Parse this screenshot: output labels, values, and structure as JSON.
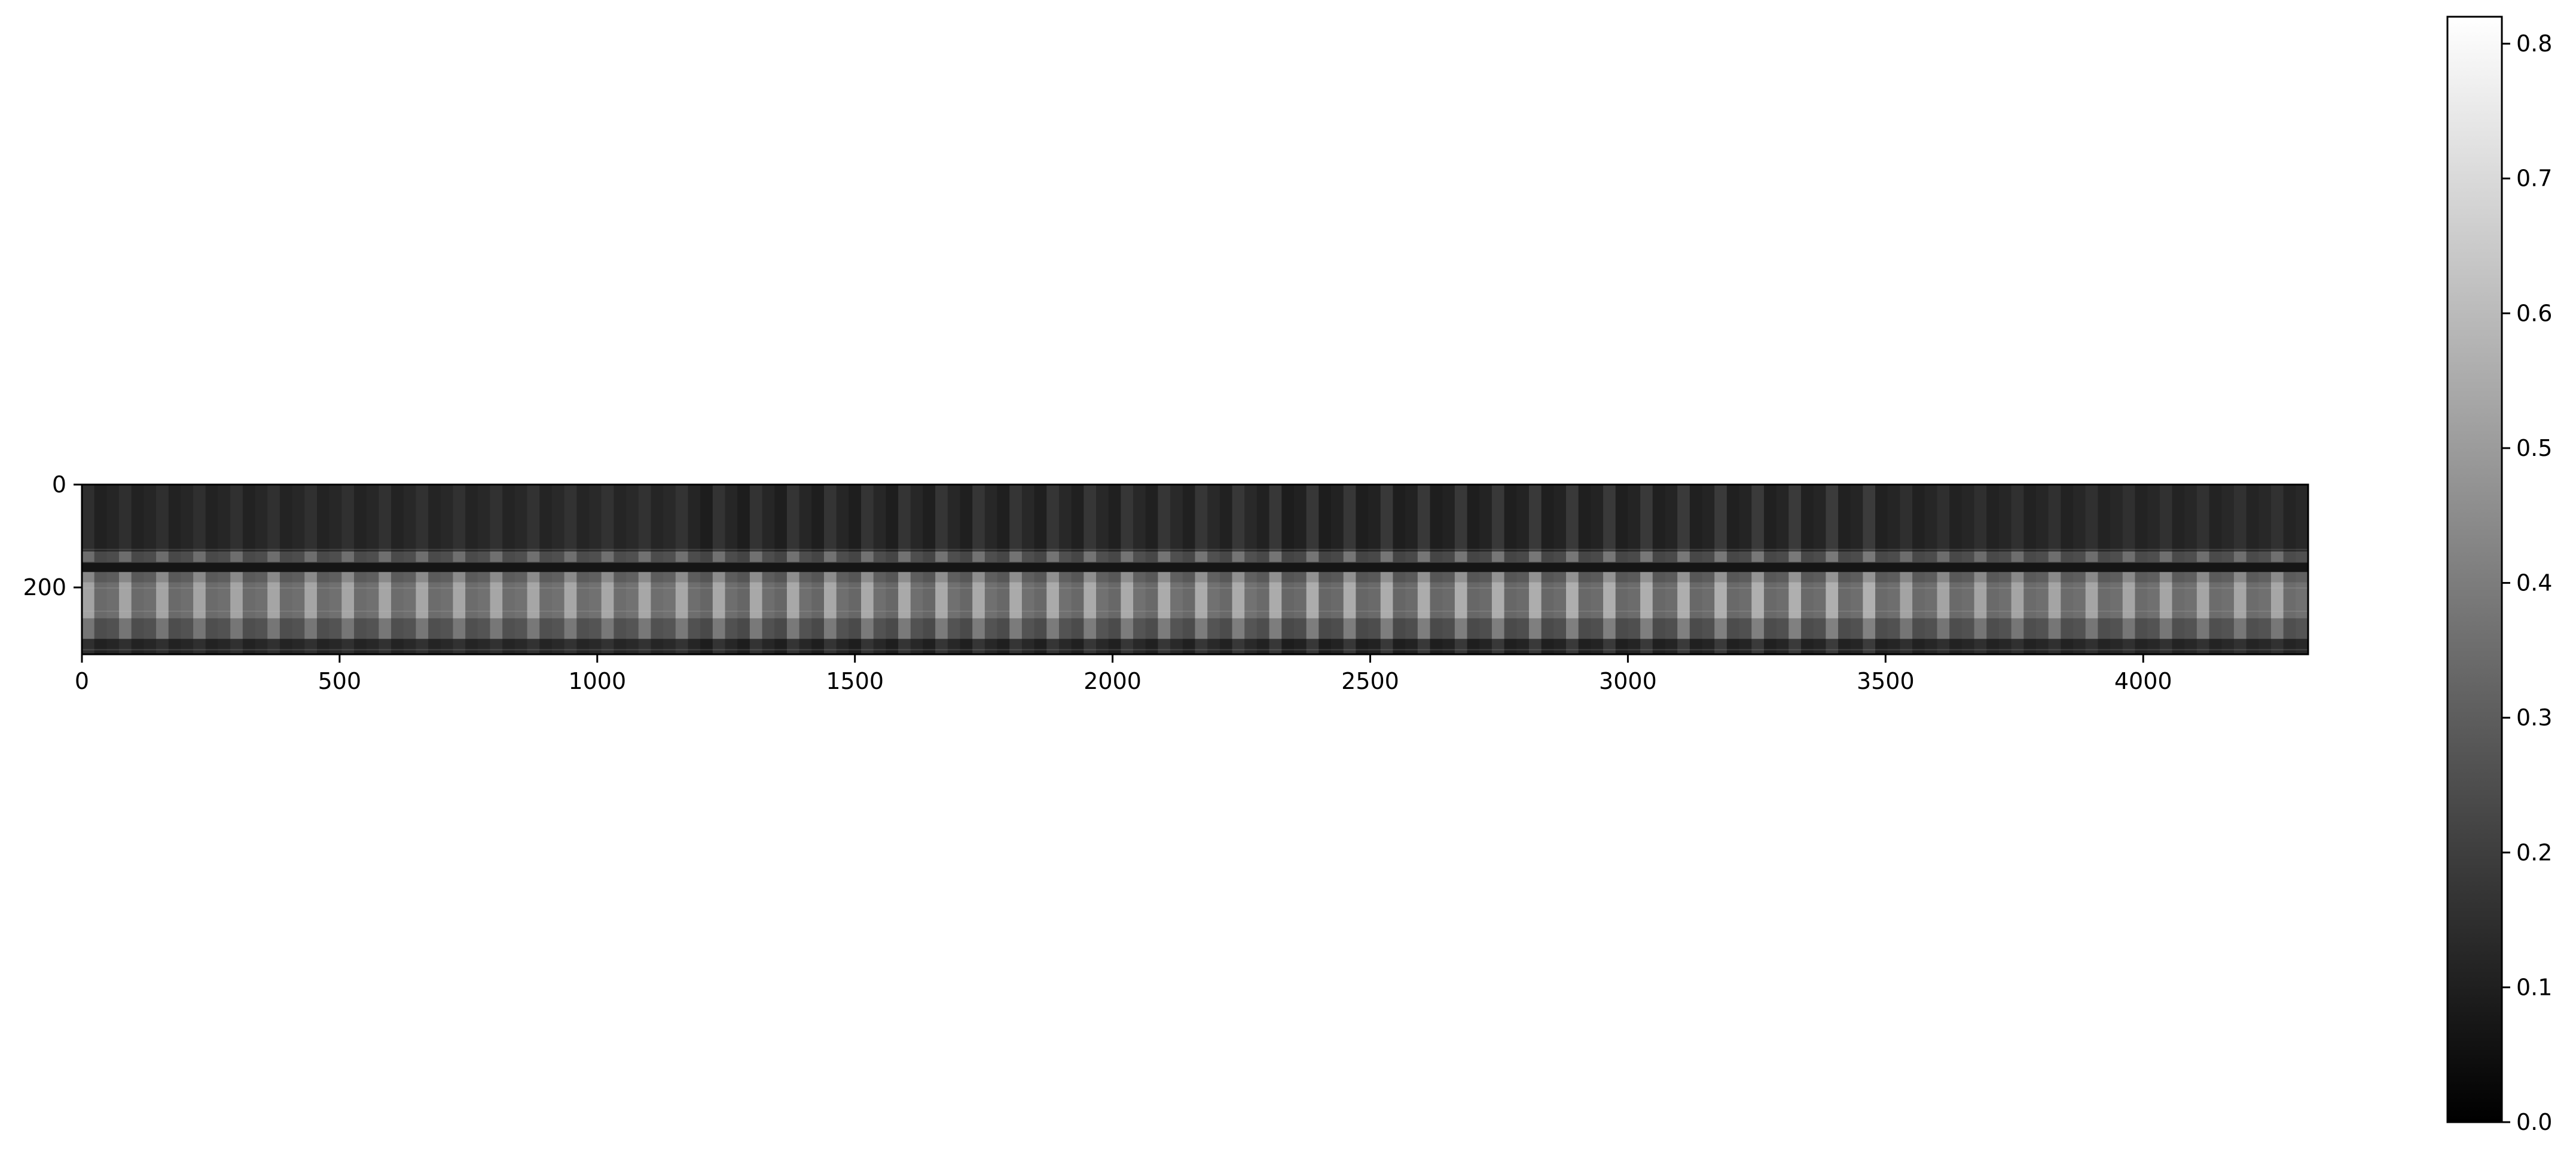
{
  "chart_data": {
    "type": "heatmap",
    "title": "",
    "xlabel": "",
    "ylabel": "",
    "colormap": "gray",
    "shape": [
      330,
      4320
    ],
    "xlim": [
      0,
      4320
    ],
    "ylim": [
      330,
      0
    ],
    "x_ticks": [
      0,
      500,
      1000,
      1500,
      2000,
      2500,
      3000,
      3500,
      4000
    ],
    "x_tick_labels": [
      "0",
      "500",
      "1000",
      "1500",
      "2000",
      "2500",
      "3000",
      "3500",
      "4000"
    ],
    "y_ticks": [
      0,
      200
    ],
    "y_tick_labels": [
      "0",
      "200"
    ],
    "pattern": {
      "column_period": 72,
      "bright_row_bands": [
        {
          "start": 130,
          "end": 150,
          "level": 0.28
        },
        {
          "start": 170,
          "end": 190,
          "level": 0.35
        },
        {
          "start": 190,
          "end": 260,
          "level": 0.42
        },
        {
          "start": 260,
          "end": 300,
          "level": 0.3
        }
      ],
      "base_level": 0.12,
      "max_level": 0.6
    },
    "colorbar": {
      "min": 0.0,
      "max": 0.82,
      "ticks": [
        0.0,
        0.1,
        0.2,
        0.3,
        0.4,
        0.5,
        0.6,
        0.7,
        0.8
      ],
      "tick_labels": [
        "0.0",
        "0.1",
        "0.2",
        "0.3",
        "0.4",
        "0.5",
        "0.6",
        "0.7",
        "0.8"
      ]
    }
  }
}
